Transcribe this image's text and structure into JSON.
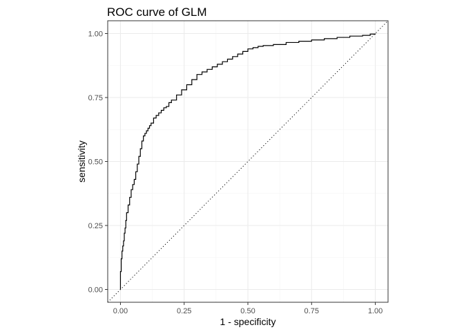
{
  "chart_data": {
    "type": "line",
    "title": "ROC curve of GLM",
    "xlabel": "1 - specificity",
    "ylabel": "sensitivity",
    "xlim": [
      -0.05,
      1.05
    ],
    "ylim": [
      -0.05,
      1.05
    ],
    "x_ticks": [
      0.0,
      0.25,
      0.5,
      0.75,
      1.0
    ],
    "y_ticks": [
      0.0,
      0.25,
      0.5,
      0.75,
      1.0
    ],
    "x_tick_labels": [
      "0.00",
      "0.25",
      "0.50",
      "0.75",
      "1.00"
    ],
    "y_tick_labels": [
      "0.00",
      "0.25",
      "0.50",
      "0.75",
      "1.00"
    ],
    "grid": true,
    "theme": "bw",
    "reference_line": {
      "x": [
        0,
        1
      ],
      "y": [
        0,
        1
      ],
      "style": "dotted"
    },
    "series": [
      {
        "x": [
          0.0,
          0.0,
          0.003,
          0.006,
          0.009,
          0.012,
          0.015,
          0.018,
          0.021,
          0.024,
          0.03,
          0.036,
          0.042,
          0.048,
          0.054,
          0.06,
          0.066,
          0.072,
          0.078,
          0.084,
          0.09,
          0.096,
          0.102,
          0.108,
          0.114,
          0.12,
          0.13,
          0.14,
          0.15,
          0.16,
          0.17,
          0.18,
          0.19,
          0.2,
          0.22,
          0.24,
          0.26,
          0.28,
          0.3,
          0.32,
          0.34,
          0.36,
          0.38,
          0.4,
          0.42,
          0.44,
          0.46,
          0.48,
          0.5,
          0.52,
          0.54,
          0.56,
          0.6,
          0.65,
          0.7,
          0.75,
          0.8,
          0.85,
          0.9,
          0.95,
          0.98,
          1.0
        ],
        "y": [
          0.0,
          0.07,
          0.12,
          0.15,
          0.17,
          0.19,
          0.22,
          0.24,
          0.27,
          0.3,
          0.33,
          0.36,
          0.39,
          0.41,
          0.43,
          0.46,
          0.49,
          0.52,
          0.55,
          0.58,
          0.6,
          0.61,
          0.62,
          0.63,
          0.64,
          0.65,
          0.67,
          0.68,
          0.69,
          0.7,
          0.71,
          0.715,
          0.73,
          0.74,
          0.76,
          0.78,
          0.8,
          0.82,
          0.84,
          0.85,
          0.86,
          0.87,
          0.88,
          0.89,
          0.9,
          0.91,
          0.92,
          0.93,
          0.94,
          0.945,
          0.95,
          0.953,
          0.957,
          0.965,
          0.97,
          0.975,
          0.98,
          0.985,
          0.99,
          0.993,
          0.998,
          1.0
        ]
      }
    ]
  }
}
